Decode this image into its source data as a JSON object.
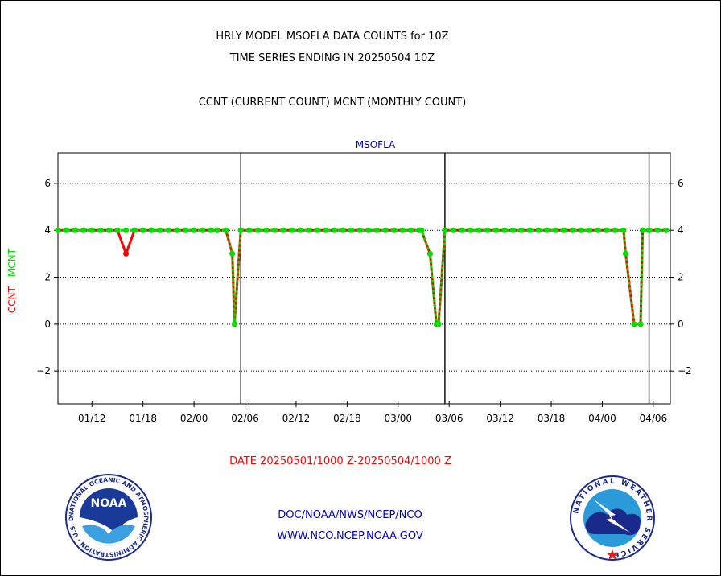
{
  "header": {
    "title_line1": "HRLY MODEL MSOFLA DATA COUNTS for 10Z",
    "title_line2": "TIME SERIES ENDING IN 20250504 10Z",
    "subtitle": "CCNT (CURRENT COUNT) MCNT (MONTHLY COUNT)"
  },
  "footer": {
    "date_range": "DATE 20250501/1000 Z-20250504/1000 Z",
    "link1": "DOC/NOAA/NWS/NCEP/NCO",
    "link2": "WWW.NCO.NCEP.NOAA.GOV"
  },
  "logos": {
    "noaa_text": "NOAA",
    "noaa_ring_text": "NATIONAL OCEANIC AND ATMOSPHERIC ADMINISTRATION · U.S. DEPARTMENT OF COMMERCE ·",
    "nws_ring_text": "NATIONAL WEATHER SERVICE"
  },
  "colors": {
    "ccnt": "#ff0000",
    "mcnt": "#00e000",
    "plot_title": "#0000c0",
    "date_text": "#ff0000",
    "link_text": "#0000c0"
  },
  "chart_data": {
    "type": "line",
    "plot_title": "MSOFLA",
    "ylabel_ccnt": "CCNT",
    "ylabel_mcnt": "MCNT",
    "ylim": [
      -3.4,
      7.3
    ],
    "yticks": [
      -2,
      0,
      2,
      4,
      6
    ],
    "grid": true,
    "xlim": [
      -8,
      280
    ],
    "x_tick_positions": [
      8,
      32,
      56,
      80,
      104,
      128,
      152,
      176,
      200,
      224,
      248,
      272
    ],
    "x_tick_labels": [
      "01/12",
      "01/18",
      "02/00",
      "02/06",
      "02/12",
      "02/18",
      "03/00",
      "03/06",
      "03/12",
      "03/18",
      "04/00",
      "04/06"
    ],
    "day_boundaries": [
      78,
      174,
      270
    ],
    "series": [
      {
        "name": "CCNT",
        "color": "#ff0000",
        "x": [
          -8,
          -4,
          0,
          4,
          8,
          12,
          16,
          20,
          24,
          28,
          32,
          36,
          40,
          44,
          48,
          52,
          56,
          60,
          64,
          67,
          71,
          74,
          75,
          78,
          82,
          86,
          90,
          94,
          98,
          102,
          106,
          110,
          114,
          118,
          122,
          126,
          130,
          134,
          138,
          142,
          146,
          150,
          154,
          158,
          162,
          163,
          167,
          170,
          171,
          174,
          178,
          182,
          186,
          190,
          194,
          198,
          202,
          206,
          210,
          214,
          218,
          222,
          226,
          230,
          234,
          238,
          242,
          246,
          250,
          254,
          258,
          259,
          263,
          266,
          267,
          270,
          274,
          278
        ],
        "y": [
          4,
          4,
          4,
          4,
          4,
          4,
          4,
          4,
          3,
          4,
          4,
          4,
          4,
          4,
          4,
          4,
          4,
          4,
          4,
          4,
          4,
          3,
          0,
          4,
          4,
          4,
          4,
          4,
          4,
          4,
          4,
          4,
          4,
          4,
          4,
          4,
          4,
          4,
          4,
          4,
          4,
          4,
          4,
          4,
          4,
          4,
          3,
          0,
          0,
          4,
          4,
          4,
          4,
          4,
          4,
          4,
          4,
          4,
          4,
          4,
          4,
          4,
          4,
          4,
          4,
          4,
          4,
          4,
          4,
          4,
          4,
          3,
          0,
          0,
          4,
          4,
          4,
          4
        ]
      },
      {
        "name": "MCNT",
        "color": "#00e000",
        "x": [
          -8,
          -4,
          0,
          4,
          8,
          12,
          16,
          20,
          24,
          28,
          32,
          36,
          40,
          44,
          48,
          52,
          56,
          60,
          64,
          67,
          71,
          74,
          75,
          78,
          82,
          86,
          90,
          94,
          98,
          102,
          106,
          110,
          114,
          118,
          122,
          126,
          130,
          134,
          138,
          142,
          146,
          150,
          154,
          158,
          162,
          163,
          167,
          170,
          171,
          174,
          178,
          182,
          186,
          190,
          194,
          198,
          202,
          206,
          210,
          214,
          218,
          222,
          226,
          230,
          234,
          238,
          242,
          246,
          250,
          254,
          258,
          259,
          263,
          266,
          267,
          270,
          274,
          278
        ],
        "y": [
          4,
          4,
          4,
          4,
          4,
          4,
          4,
          4,
          4,
          4,
          4,
          4,
          4,
          4,
          4,
          4,
          4,
          4,
          4,
          4,
          4,
          3,
          0,
          4,
          4,
          4,
          4,
          4,
          4,
          4,
          4,
          4,
          4,
          4,
          4,
          4,
          4,
          4,
          4,
          4,
          4,
          4,
          4,
          4,
          4,
          4,
          3,
          0,
          0,
          4,
          4,
          4,
          4,
          4,
          4,
          4,
          4,
          4,
          4,
          4,
          4,
          4,
          4,
          4,
          4,
          4,
          4,
          4,
          4,
          4,
          4,
          3,
          0,
          0,
          4,
          4,
          4,
          4
        ]
      }
    ]
  }
}
